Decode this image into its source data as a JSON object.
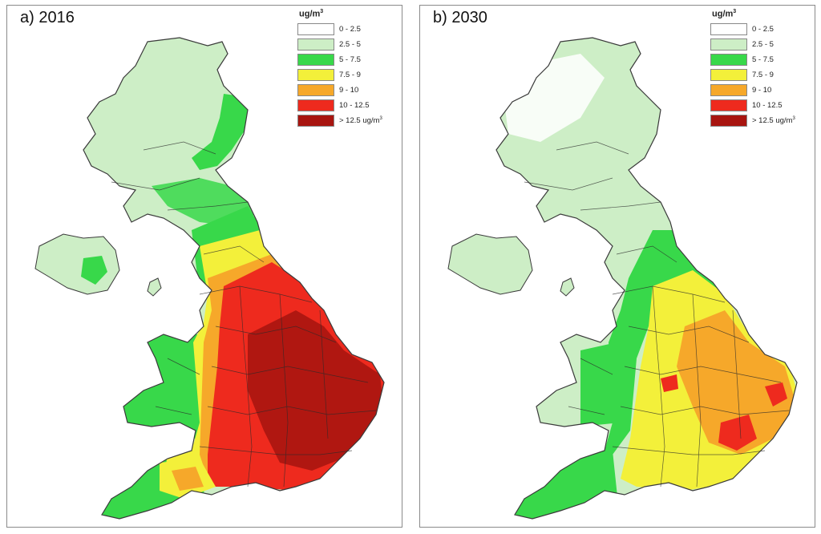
{
  "panels": [
    {
      "id": "a",
      "title": "a) 2016",
      "dominant_levels": [
        "2.5 - 5",
        "5 - 7.5",
        "7.5 - 9",
        "10 - 12.5",
        "> 12.5 ug/m3"
      ]
    },
    {
      "id": "b",
      "title": "b) 2030",
      "dominant_levels": [
        "2.5 - 5",
        "5 - 7.5",
        "7.5 - 9",
        "9 - 10",
        "10 - 12.5"
      ]
    }
  ],
  "legend": {
    "unit": "ug/m",
    "unit_exp": "3",
    "items": [
      {
        "label": "0 - 2.5",
        "color": "#ffffff"
      },
      {
        "label": "2.5 - 5",
        "color": "#cdeec6"
      },
      {
        "label": "5 - 7.5",
        "color": "#38d84a"
      },
      {
        "label": "7.5 - 9",
        "color": "#f3f03a"
      },
      {
        "label": "9 - 10",
        "color": "#f6a82a"
      },
      {
        "label": "10 - 12.5",
        "color": "#ee2a1e"
      },
      {
        "label": "> 12.5 ug/m",
        "label_exp": "3",
        "color": "#a81510"
      }
    ]
  },
  "colors": {
    "outline": "#3a3a3a",
    "boundary": "#2a2a2a"
  }
}
